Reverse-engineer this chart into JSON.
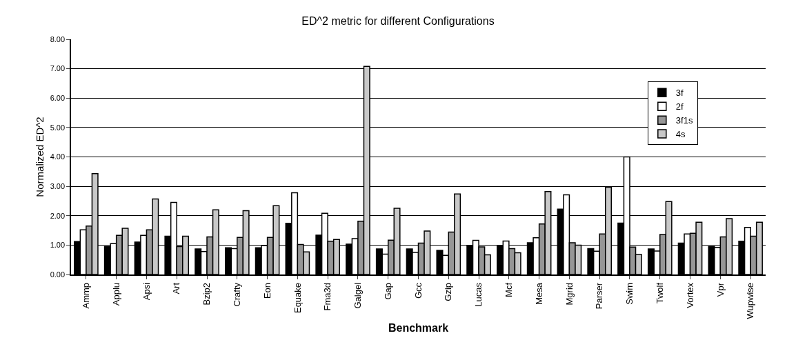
{
  "chart_data": {
    "type": "bar",
    "title": "ED^2 metric for different Configurations",
    "xlabel": "Benchmark",
    "ylabel": "Normalized ED^2",
    "categories": [
      "Ammp",
      "Applu",
      "Apsi",
      "Art",
      "Bzip2",
      "Crafty",
      "Eon",
      "Equake",
      "Fma3d",
      "Galgel",
      "Gap",
      "Gcc",
      "Gzip",
      "Lucas",
      "Mcf",
      "Mesa",
      "Mgrid",
      "Parser",
      "Swim",
      "Twolf",
      "Vortex",
      "Vpr",
      "Wupwise"
    ],
    "series": [
      {
        "name": "3f",
        "color": "#000000",
        "values": [
          1.12,
          0.95,
          1.1,
          1.3,
          0.87,
          0.91,
          0.91,
          1.74,
          1.34,
          1.03,
          0.87,
          0.87,
          0.82,
          0.99,
          0.99,
          1.08,
          2.22,
          0.88,
          1.75,
          0.87,
          1.07,
          0.95,
          1.13
        ]
      },
      {
        "name": "2f",
        "color": "#ffffff",
        "values": [
          1.52,
          1.05,
          1.33,
          2.45,
          0.78,
          0.88,
          0.98,
          2.78,
          2.08,
          1.22,
          0.69,
          0.75,
          0.65,
          1.16,
          1.14,
          1.25,
          2.71,
          0.79,
          4.0,
          0.8,
          1.38,
          0.92,
          1.6
        ]
      },
      {
        "name": "3f1s",
        "color": "#969696",
        "values": [
          1.65,
          1.33,
          1.52,
          0.95,
          1.28,
          1.26,
          1.26,
          1.02,
          1.13,
          1.81,
          1.17,
          1.07,
          1.44,
          0.94,
          0.88,
          1.72,
          1.08,
          1.38,
          0.93,
          1.36,
          1.4,
          1.28,
          1.3
        ]
      },
      {
        "name": "4s",
        "color": "#c8c8c8",
        "values": [
          3.43,
          1.57,
          2.57,
          1.3,
          2.2,
          2.17,
          2.34,
          0.77,
          1.19,
          7.08,
          2.25,
          1.48,
          2.74,
          0.67,
          0.74,
          2.82,
          1.0,
          2.97,
          0.68,
          2.48,
          1.78,
          1.9,
          1.78
        ]
      }
    ],
    "ylim": [
      0,
      8
    ],
    "yticks": [
      {
        "value": 0,
        "label": "0.00"
      },
      {
        "value": 1,
        "label": "1.00"
      },
      {
        "value": 2,
        "label": "2.00"
      },
      {
        "value": 3,
        "label": "3.00"
      },
      {
        "value": 4,
        "label": "4.00"
      },
      {
        "value": 5,
        "label": "5.00"
      },
      {
        "value": 6,
        "label": "6.00"
      },
      {
        "value": 7,
        "label": "7.00"
      },
      {
        "value": 8,
        "label": "8.00"
      }
    ],
    "grid": "y",
    "legend": "top right"
  }
}
